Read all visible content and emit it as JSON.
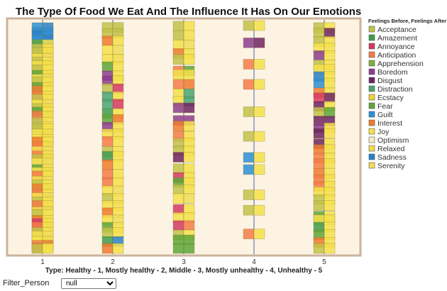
{
  "chart_data": {
    "type": "heatmap",
    "title": "The Type Of Food We Eat And The Influence It Has On Our Emotions",
    "xlabel": "Type: Healthy - 1, Mostly healthy - 2, Middle - 3, Mostly unhealthy - 4, Unhealthy - 5",
    "x_ticks": [
      "1",
      "2",
      "3",
      "4",
      "5"
    ],
    "legend_title": "Feelings Before, Feelings After",
    "legend": [
      {
        "name": "Acceptance",
        "color": "#c2c24a"
      },
      {
        "name": "Amazement",
        "color": "#3f9a4e"
      },
      {
        "name": "Annoyance",
        "color": "#d63864"
      },
      {
        "name": "Anticipation",
        "color": "#f47b46"
      },
      {
        "name": "Apprehension",
        "color": "#7db33a"
      },
      {
        "name": "Boredom",
        "color": "#8c3d8c"
      },
      {
        "name": "Disgust",
        "color": "#6e2460"
      },
      {
        "name": "Distraction",
        "color": "#4aa374"
      },
      {
        "name": "Ecstacy",
        "color": "#f2d03a"
      },
      {
        "name": "Fear",
        "color": "#5fa638"
      },
      {
        "name": "Guilt",
        "color": "#2b8fd6"
      },
      {
        "name": "Interest",
        "color": "#ee7b2e"
      },
      {
        "name": "Joy",
        "color": "#f4e04a"
      },
      {
        "name": "Optimism",
        "color": "#f6ecc0"
      },
      {
        "name": "Relaxed",
        "color": "#f2dc48"
      },
      {
        "name": "Sadness",
        "color": "#2a80c8"
      },
      {
        "name": "Serenity",
        "color": "#f0dc58"
      }
    ],
    "columns": [
      {
        "x": 1,
        "records": [
          [
            "Guilt",
            "Sadness"
          ],
          [
            "Guilt",
            "Guilt"
          ],
          [
            "Sadness",
            "Guilt"
          ],
          [
            "Guilt",
            "Sadness"
          ],
          [
            "Fear",
            "Joy"
          ],
          [
            "Acceptance",
            "Joy"
          ],
          [
            "Acceptance",
            "Relaxed"
          ],
          [
            "Joy",
            "Serenity"
          ],
          [
            "Acceptance",
            "Joy"
          ],
          [
            "Joy",
            "Relaxed"
          ],
          [
            "Acceptance",
            "Joy"
          ],
          [
            "Fear",
            "Relaxed"
          ],
          [
            "Joy",
            "Serenity"
          ],
          [
            "Acceptance",
            "Joy"
          ],
          [
            "Fear",
            "Relaxed"
          ],
          [
            "Interest",
            "Joy"
          ],
          [
            "Anticipation",
            "Joy"
          ],
          [
            "Acceptance",
            "Joy"
          ],
          [
            "Joy",
            "Serenity"
          ],
          [
            "Acceptance",
            "Relaxed"
          ],
          [
            "Fear",
            "Joy"
          ],
          [
            "Anticipation",
            "Relaxed"
          ],
          [
            "Acceptance",
            "Joy"
          ],
          [
            "Acceptance",
            "Joy"
          ],
          [
            "Acceptance",
            "Joy"
          ],
          [
            "Joy",
            "Relaxed"
          ],
          [
            "Joy",
            "Relaxed"
          ],
          [
            "Interest",
            "Joy"
          ],
          [
            "Anticipation",
            "Relaxed"
          ],
          [
            "Joy",
            "Serenity"
          ],
          [
            "Anticipation",
            "Joy"
          ],
          [
            "Acceptance",
            "Relaxed"
          ],
          [
            "Joy",
            "Serenity"
          ],
          [
            "Fear",
            "Joy"
          ],
          [
            "Joy",
            "Relaxed"
          ],
          [
            "Anticipation",
            "Joy"
          ],
          [
            "Joy",
            "Serenity"
          ],
          [
            "Acceptance",
            "Joy"
          ],
          [
            "Interest",
            "Relaxed"
          ],
          [
            "Anticipation",
            "Joy"
          ],
          [
            "Joy",
            "Serenity"
          ],
          [
            "Acceptance",
            "Joy"
          ],
          [
            "Anticipation",
            "Relaxed"
          ],
          [
            "Joy",
            "Serenity"
          ],
          [
            "Acceptance",
            "Joy"
          ],
          [
            "Interest",
            "Joy"
          ],
          [
            "Annoyance",
            "Joy"
          ],
          [
            "Anticipation",
            "Relaxed"
          ],
          [
            "Acceptance",
            "Joy"
          ],
          [
            "Joy",
            "Serenity"
          ],
          [
            "Joy",
            "Relaxed"
          ],
          [
            "Anticipation",
            "Interest"
          ],
          [
            "Anticipation",
            "Joy"
          ],
          [
            "Acceptance",
            "Joy"
          ]
        ]
      },
      {
        "x": 2,
        "records": [
          [
            "Acceptance",
            "Acceptance"
          ],
          [
            "Acceptance",
            "Acceptance"
          ],
          [
            "Interest",
            "Joy"
          ],
          [
            "Joy",
            "Serenity"
          ],
          [
            "Joy",
            "Relaxed"
          ],
          [
            "Fear",
            "Joy"
          ],
          [
            "Boredom",
            "Joy"
          ],
          [
            "Boredom",
            "Joy"
          ],
          [
            "Acceptance",
            "Annoyance"
          ],
          [
            "Distraction",
            "Joy"
          ],
          [
            "Distraction",
            "Annoyance"
          ],
          [
            "Amazement",
            "Joy"
          ],
          [
            "Fear",
            "Interest"
          ],
          [
            "Boredom",
            "Joy"
          ],
          [
            "Joy",
            "Relaxed"
          ],
          [
            "Anticipation",
            "Joy"
          ],
          [
            "Acceptance",
            "Joy"
          ],
          [
            "Amazement",
            "Joy"
          ],
          [
            "Interest",
            "Joy"
          ],
          [
            "Anticipation",
            "Joy"
          ],
          [
            "Anticipation",
            "Joy"
          ],
          [
            "Joy",
            "Serenity"
          ],
          [
            "Acceptance",
            "Joy"
          ],
          [
            "Joy",
            "Relaxed"
          ],
          [
            "Interest",
            "Joy"
          ],
          [
            "Joy",
            "Serenity"
          ],
          [
            "Fear",
            "Joy"
          ],
          [
            "Acceptance",
            "Joy"
          ],
          [
            "Amazement",
            "Sadness"
          ],
          [
            "Interest",
            "Joy"
          ]
        ]
      },
      {
        "x": 3,
        "records": [
          [
            "Acceptance",
            "Joy"
          ],
          [
            "Acceptance",
            "Joy"
          ],
          [
            "Joy",
            "Serenity"
          ],
          [
            "Interest",
            "Joy"
          ],
          [
            "Acceptance",
            "Joy"
          ],
          [
            "Anticipation",
            "Fear"
          ],
          [
            "Joy",
            "Joy"
          ],
          [
            "Anticipation",
            "Interest"
          ],
          [
            "Joy",
            "Distraction"
          ],
          [
            "Joy",
            "Distraction"
          ],
          [
            "Boredom",
            "Disgust"
          ],
          [
            "Boredom",
            "Boredom"
          ],
          [
            "Interest",
            "Joy"
          ],
          [
            "Anticipation",
            "Joy"
          ],
          [
            "Acceptance",
            "Joy"
          ],
          [
            "Acceptance",
            "Joy"
          ],
          [
            "Disgust",
            "Joy"
          ],
          [
            "Acceptance",
            "Joy"
          ],
          [
            "Annoyance",
            "Joy"
          ],
          [
            "Fear",
            "Joy"
          ],
          [
            "Acceptance",
            "Joy"
          ],
          [
            "Joy",
            "Serenity"
          ],
          [
            "Annoyance",
            "Joy"
          ],
          [
            "Joy",
            "Joy"
          ],
          [
            "Annoyance",
            "Anticipation"
          ],
          [
            "Acceptance",
            "Joy"
          ],
          [
            "Fear",
            "Fear"
          ],
          [
            "Fear",
            "Fear"
          ]
        ]
      },
      {
        "x": 4,
        "records": [
          [
            "Acceptance",
            "Joy"
          ],
          [
            "Boredom",
            "Disgust"
          ],
          [
            "Anticipation",
            "Joy"
          ],
          [
            "Anticipation",
            "Joy"
          ],
          [
            "Acceptance",
            "Joy"
          ],
          [
            "Acceptance",
            "Joy"
          ],
          [
            "Guilt",
            "Joy"
          ],
          [
            "Guilt",
            "Joy"
          ],
          [
            "Acceptance",
            "Joy"
          ],
          [
            "Acceptance",
            "Joy"
          ],
          [
            "Anticipation",
            "Joy"
          ]
        ]
      },
      {
        "x": 5,
        "records": [
          [
            "Acceptance",
            "Joy"
          ],
          [
            "Acceptance",
            "Disgust"
          ],
          [
            "Acceptance",
            "Joy"
          ],
          [
            "Joy",
            "Joy"
          ],
          [
            "Boredom",
            "Joy"
          ],
          [
            "Acceptance",
            "Joy"
          ],
          [
            "Joy",
            "Joy"
          ],
          [
            "Sadness",
            "Joy"
          ],
          [
            "Guilt",
            "Joy"
          ],
          [
            "Interest",
            "Joy"
          ],
          [
            "Annoyance",
            "Disgust"
          ],
          [
            "Disgust",
            "Joy"
          ],
          [
            "Acceptance",
            "Fear"
          ],
          [
            "Disgust",
            "Disgust"
          ],
          [
            "Boredom",
            "Joy"
          ],
          [
            "Disgust",
            "Joy"
          ],
          [
            "Disgust",
            "Joy"
          ],
          [
            "Interest",
            "Joy"
          ],
          [
            "Anticipation",
            "Joy"
          ],
          [
            "Anticipation",
            "Joy"
          ],
          [
            "Interest",
            "Joy"
          ],
          [
            "Anticipation",
            "Joy"
          ],
          [
            "Anticipation",
            "Joy"
          ],
          [
            "Joy",
            "Joy"
          ],
          [
            "Acceptance",
            "Joy"
          ],
          [
            "Acceptance",
            "Joy"
          ],
          [
            "Fear",
            "Joy"
          ],
          [
            "Joy",
            "Joy"
          ],
          [
            "Amazement",
            "Joy"
          ],
          [
            "Fear",
            "Joy"
          ],
          [
            "Interest",
            "Joy"
          ],
          [
            "Acceptance",
            "Joy"
          ]
        ]
      }
    ]
  },
  "filter": {
    "label": "Filter_Person",
    "selected": "null"
  }
}
